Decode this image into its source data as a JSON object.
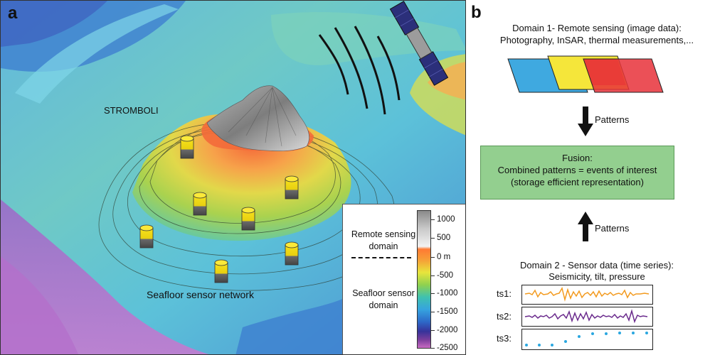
{
  "panel_a": {
    "letter": "a",
    "volcano_label": "STROMBOLI",
    "network_label": "Seafloor sensor network",
    "legend": {
      "remote_label": "Remote sensing domain",
      "seafloor_label": "Seafloor sensor domain",
      "ticks": [
        "1000",
        "500",
        "0 m",
        "-500",
        "-1000",
        "-1500",
        "-2000",
        "-2500"
      ]
    }
  },
  "panel_b": {
    "letter": "b",
    "domain1_line1": "Domain 1- Remote sensing (image data):",
    "domain1_line2": "Photography, InSAR, thermal measurements,...",
    "patterns_top": "Patterns",
    "fusion_title": "Fusion:",
    "fusion_line2": "Combined patterns = events of interest",
    "fusion_line3": "(storage efficient representation)",
    "patterns_bottom": "Patterns",
    "domain2_line1": "Domain 2 - Sensor data (time series):",
    "domain2_line2": "Seismicity, tilt, pressure",
    "series": [
      {
        "label": "ts1:",
        "color": "#f39a1e"
      },
      {
        "label": "ts2:",
        "color": "#6a2a8c"
      },
      {
        "label": "ts3:",
        "color": "#2aa7e0"
      }
    ],
    "image_layer_colors": [
      "#3fa9e0",
      "#f5e63a",
      "#e8313a"
    ]
  }
}
